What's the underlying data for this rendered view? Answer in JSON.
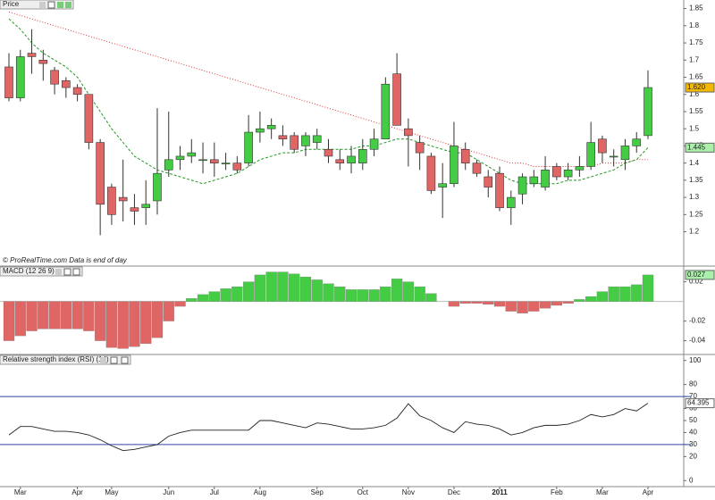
{
  "chart_data": [
    {
      "type": "candlestick",
      "title": "Price",
      "note": "© ProRealTime.com  Data is end of day",
      "categories": [
        null,
        "Mar",
        null,
        null,
        null,
        null,
        "Apr",
        null,
        null,
        "May",
        null,
        null,
        null,
        null,
        "Jun",
        null,
        null,
        null,
        "Jul",
        null,
        null,
        null,
        "Aug",
        null,
        null,
        null,
        null,
        "Sep",
        null,
        null,
        null,
        "Oct",
        null,
        null,
        null,
        "Nov",
        null,
        null,
        null,
        "Dec",
        null,
        null,
        null,
        "2011",
        null,
        null,
        null,
        null,
        "Feb",
        null,
        null,
        null,
        "Mar",
        null,
        null,
        null,
        "Apr"
      ],
      "open": [
        1.68,
        1.59,
        1.72,
        1.7,
        1.67,
        1.64,
        1.62,
        1.6,
        1.46,
        1.33,
        1.3,
        1.27,
        1.27,
        1.29,
        1.38,
        1.41,
        1.42,
        1.41,
        1.41,
        1.4,
        1.4,
        1.4,
        1.49,
        1.5,
        1.48,
        1.48,
        1.45,
        1.46,
        1.44,
        1.41,
        1.4,
        1.4,
        1.44,
        1.47,
        1.66,
        1.5,
        1.46,
        1.42,
        1.33,
        1.34,
        1.44,
        1.4,
        1.36,
        1.37,
        1.27,
        1.31,
        1.34,
        1.33,
        1.39,
        1.36,
        1.38,
        1.39,
        1.47,
        1.42,
        1.41,
        1.45,
        1.48
      ],
      "high": [
        1.72,
        1.73,
        1.79,
        1.73,
        1.68,
        1.65,
        1.63,
        1.6,
        1.47,
        1.34,
        1.41,
        1.31,
        1.35,
        1.56,
        1.55,
        1.45,
        1.47,
        1.46,
        1.46,
        1.43,
        1.42,
        1.54,
        1.55,
        1.53,
        1.51,
        1.49,
        1.49,
        1.5,
        1.47,
        1.44,
        1.45,
        1.47,
        1.5,
        1.65,
        1.72,
        1.53,
        1.48,
        1.43,
        1.4,
        1.52,
        1.46,
        1.41,
        1.38,
        1.39,
        1.32,
        1.37,
        1.38,
        1.42,
        1.4,
        1.4,
        1.42,
        1.52,
        1.48,
        1.44,
        1.47,
        1.49,
        1.67
      ],
      "low": [
        1.58,
        1.58,
        1.66,
        1.64,
        1.6,
        1.59,
        1.58,
        1.44,
        1.19,
        1.22,
        1.23,
        1.22,
        1.22,
        1.25,
        1.36,
        1.38,
        1.4,
        1.37,
        1.36,
        1.38,
        1.37,
        1.39,
        1.46,
        1.47,
        1.45,
        1.43,
        1.42,
        1.44,
        1.4,
        1.38,
        1.37,
        1.38,
        1.42,
        1.47,
        1.51,
        1.39,
        1.38,
        1.31,
        1.24,
        1.33,
        1.38,
        1.36,
        1.3,
        1.26,
        1.22,
        1.28,
        1.33,
        1.32,
        1.35,
        1.35,
        1.36,
        1.38,
        1.4,
        1.39,
        1.38,
        1.43,
        1.47
      ],
      "close": [
        1.59,
        1.71,
        1.71,
        1.69,
        1.63,
        1.62,
        1.6,
        1.46,
        1.28,
        1.25,
        1.29,
        1.26,
        1.28,
        1.37,
        1.41,
        1.42,
        1.43,
        1.41,
        1.4,
        1.4,
        1.38,
        1.49,
        1.5,
        1.51,
        1.47,
        1.44,
        1.48,
        1.48,
        1.42,
        1.4,
        1.42,
        1.44,
        1.47,
        1.63,
        1.51,
        1.48,
        1.43,
        1.32,
        1.34,
        1.45,
        1.4,
        1.37,
        1.33,
        1.27,
        1.3,
        1.36,
        1.36,
        1.38,
        1.36,
        1.38,
        1.39,
        1.46,
        1.43,
        1.42,
        1.45,
        1.47,
        1.62
      ],
      "last_close_label": "1.620",
      "up_color": "#44cc44",
      "down_color": "#e06666",
      "lines": [
        {
          "color": "#dd3333",
          "dash": "1,2",
          "values": [
            1.84,
            1.83,
            1.82,
            1.81,
            1.8,
            1.79,
            1.78,
            1.77,
            1.76,
            1.75,
            1.74,
            1.73,
            1.72,
            1.71,
            1.7,
            1.69,
            1.68,
            1.67,
            1.66,
            1.65,
            1.64,
            1.63,
            1.62,
            1.61,
            1.6,
            1.59,
            1.58,
            1.57,
            1.56,
            1.55,
            1.54,
            1.53,
            1.52,
            1.51,
            1.5,
            1.49,
            1.48,
            1.47,
            1.46,
            1.45,
            1.44,
            1.43,
            1.42,
            1.41,
            1.4,
            1.4,
            1.39,
            1.39,
            1.39,
            1.39,
            1.39,
            1.39,
            1.4,
            1.4,
            1.4,
            1.41,
            1.41
          ]
        },
        {
          "color": "#229922",
          "dash": "3,2",
          "values": [
            1.82,
            1.79,
            1.75,
            1.72,
            1.7,
            1.68,
            1.65,
            1.6,
            1.55,
            1.5,
            1.46,
            1.42,
            1.4,
            1.38,
            1.37,
            1.36,
            1.35,
            1.34,
            1.35,
            1.36,
            1.37,
            1.39,
            1.41,
            1.42,
            1.43,
            1.43,
            1.44,
            1.44,
            1.44,
            1.44,
            1.44,
            1.45,
            1.45,
            1.46,
            1.47,
            1.47,
            1.46,
            1.45,
            1.44,
            1.43,
            1.43,
            1.41,
            1.39,
            1.37,
            1.35,
            1.34,
            1.34,
            1.34,
            1.34,
            1.35,
            1.35,
            1.36,
            1.37,
            1.38,
            1.4,
            1.41,
            1.445
          ]
        }
      ],
      "ylim": [
        1.1,
        1.875
      ],
      "yticks": [
        1.2,
        1.25,
        1.3,
        1.35,
        1.4,
        1.45,
        1.5,
        1.55,
        1.6,
        1.65,
        1.7,
        1.75,
        1.8,
        1.85
      ]
    },
    {
      "type": "bar",
      "title": "MACD (12 26 9)",
      "values": [
        -0.04,
        -0.035,
        -0.03,
        -0.028,
        -0.028,
        -0.028,
        -0.028,
        -0.03,
        -0.04,
        -0.047,
        -0.048,
        -0.046,
        -0.043,
        -0.037,
        -0.02,
        -0.005,
        0.003,
        0.007,
        0.01,
        0.013,
        0.015,
        0.02,
        0.027,
        0.03,
        0.03,
        0.028,
        0.025,
        0.022,
        0.018,
        0.015,
        0.012,
        0.012,
        0.012,
        0.015,
        0.023,
        0.02,
        0.015,
        0.008,
        0,
        -0.005,
        -0.002,
        -0.002,
        -0.003,
        -0.005,
        -0.01,
        -0.012,
        -0.01,
        -0.007,
        -0.004,
        -0.002,
        0.002,
        0.005,
        0.01,
        0.015,
        0.015,
        0.017,
        0.027
      ],
      "up_color": "#44cc44",
      "down_color": "#e06666",
      "ylim": [
        -0.054,
        0.036
      ],
      "yticks": [
        0.02,
        -0.02,
        -0.04
      ]
    },
    {
      "type": "line",
      "title": "Relative strength index (RSI) (14)",
      "values": [
        38,
        45,
        45,
        43,
        41,
        41,
        40,
        38,
        34,
        29,
        25,
        26,
        28,
        30,
        37,
        40,
        42,
        42,
        42,
        42,
        42,
        42,
        50,
        50,
        48,
        46,
        44,
        48,
        47,
        45,
        43,
        43,
        44,
        46,
        52,
        64,
        54,
        50,
        44,
        40,
        49,
        47,
        46,
        43,
        38,
        40,
        44,
        46,
        46,
        47,
        50,
        55,
        53,
        55,
        60,
        58,
        64.395
      ],
      "color": "#222222",
      "levels": [
        70,
        30
      ],
      "level_color": "#3344aa",
      "ylim": [
        -5,
        105
      ],
      "yticks": [
        0,
        20,
        30,
        40,
        50,
        60,
        70,
        80,
        100
      ]
    }
  ]
}
